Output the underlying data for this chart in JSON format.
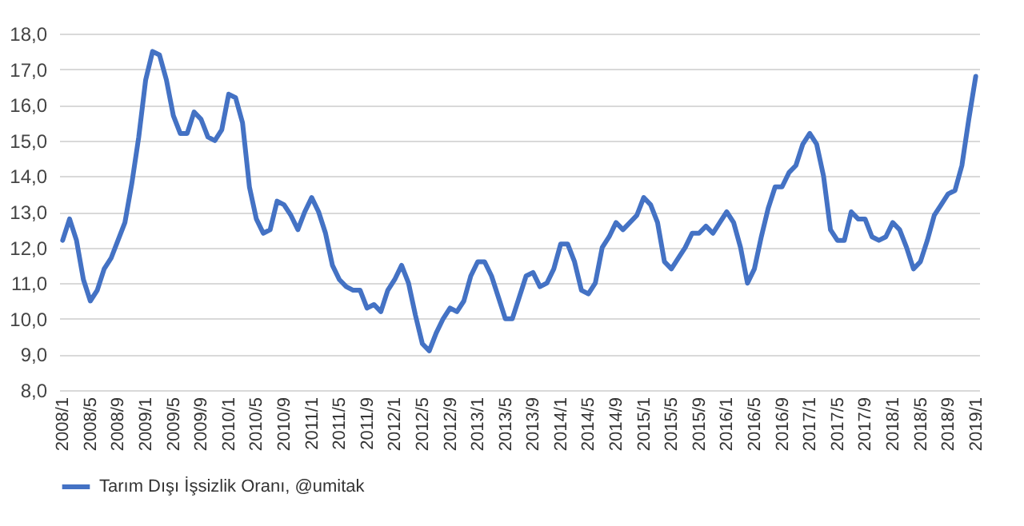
{
  "chart_data": {
    "type": "line",
    "categories": [
      "2008/1",
      null,
      null,
      null,
      "2008/5",
      null,
      null,
      null,
      "2008/9",
      null,
      null,
      null,
      "2009/1",
      null,
      null,
      null,
      "2009/5",
      null,
      null,
      null,
      "2009/9",
      null,
      null,
      null,
      "2010/1",
      null,
      null,
      null,
      "2010/5",
      null,
      null,
      null,
      "2010/9",
      null,
      null,
      null,
      "2011/1",
      null,
      null,
      null,
      "2011/5",
      null,
      null,
      null,
      "2011/9",
      null,
      null,
      null,
      "2012/1",
      null,
      null,
      null,
      "2012/5",
      null,
      null,
      null,
      "2012/9",
      null,
      null,
      null,
      "2013/1",
      null,
      null,
      null,
      "2013/5",
      null,
      null,
      null,
      "2013/9",
      null,
      null,
      null,
      "2014/1",
      null,
      null,
      null,
      "2014/5",
      null,
      null,
      null,
      "2014/9",
      null,
      null,
      null,
      "2015/1",
      null,
      null,
      null,
      "2015/5",
      null,
      null,
      null,
      "2015/9",
      null,
      null,
      null,
      "2016/1",
      null,
      null,
      null,
      "2016/5",
      null,
      null,
      null,
      "2016/9",
      null,
      null,
      null,
      "2017/1",
      null,
      null,
      null,
      "2017/5",
      null,
      null,
      null,
      "2017/9",
      null,
      null,
      null,
      "2018/1",
      null,
      null,
      null,
      "2018/5",
      null,
      null,
      null,
      "2018/9",
      null,
      null,
      null,
      "2019/1"
    ],
    "series": [
      {
        "name": "Tarım Dışı İşsizlik Oranı, @umitak",
        "color": "#4472c4",
        "values": [
          12.2,
          12.8,
          12.2,
          11.1,
          10.5,
          10.8,
          11.4,
          11.7,
          12.2,
          12.7,
          13.8,
          15.1,
          16.7,
          17.5,
          17.4,
          16.7,
          15.7,
          15.2,
          15.2,
          15.8,
          15.6,
          15.1,
          15.0,
          15.3,
          16.3,
          16.2,
          15.5,
          13.7,
          12.8,
          12.4,
          12.5,
          13.3,
          13.2,
          12.9,
          12.5,
          13.0,
          13.4,
          13.0,
          12.4,
          11.5,
          11.1,
          10.9,
          10.8,
          10.8,
          10.3,
          10.4,
          10.2,
          10.8,
          11.1,
          11.5,
          11.0,
          10.1,
          9.3,
          9.1,
          9.6,
          10.0,
          10.3,
          10.2,
          10.5,
          11.2,
          11.6,
          11.6,
          11.2,
          10.6,
          10.0,
          10.0,
          10.6,
          11.2,
          11.3,
          10.9,
          11.0,
          11.4,
          12.1,
          12.1,
          11.6,
          10.8,
          10.7,
          11.0,
          12.0,
          12.3,
          12.7,
          12.5,
          12.7,
          12.9,
          13.4,
          13.2,
          12.7,
          11.6,
          11.4,
          11.7,
          12.0,
          12.4,
          12.4,
          12.6,
          12.4,
          12.7,
          13.0,
          12.7,
          12.0,
          11.0,
          11.4,
          12.3,
          13.1,
          13.7,
          13.7,
          14.1,
          14.3,
          14.9,
          15.2,
          14.9,
          14.0,
          12.5,
          12.2,
          12.2,
          13.0,
          12.8,
          12.8,
          12.3,
          12.2,
          12.3,
          12.7,
          12.5,
          12.0,
          11.4,
          11.6,
          12.2,
          12.9,
          13.2,
          13.5,
          13.6,
          14.3,
          15.6,
          16.8
        ]
      }
    ],
    "ylim": [
      8,
      18
    ],
    "yticks": [
      {
        "value": 8,
        "label": "8,0"
      },
      {
        "value": 9,
        "label": "9,0"
      },
      {
        "value": 10,
        "label": "10,0"
      },
      {
        "value": 11,
        "label": "11,0"
      },
      {
        "value": 12,
        "label": "12,0"
      },
      {
        "value": 13,
        "label": "13,0"
      },
      {
        "value": 14,
        "label": "14,0"
      },
      {
        "value": 15,
        "label": "15,0"
      },
      {
        "value": 16,
        "label": "16,0"
      },
      {
        "value": 17,
        "label": "17,0"
      },
      {
        "value": 18,
        "label": "18,0"
      }
    ],
    "grid": "y",
    "legend": "bottom",
    "marker": "none",
    "line_style": "solid"
  }
}
